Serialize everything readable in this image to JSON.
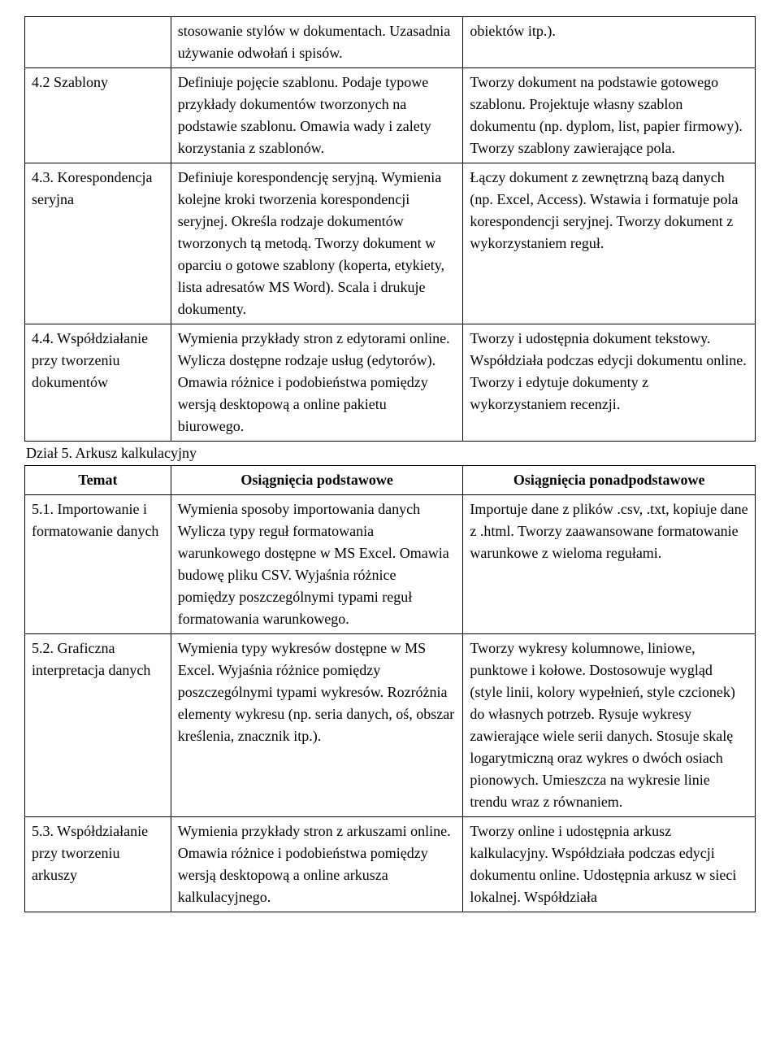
{
  "table1": {
    "rows": [
      {
        "topic": "",
        "basic": "stosowanie stylów w dokumentach. Uzasadnia używanie odwołań i spisów.",
        "extra": "obiektów itp.)."
      },
      {
        "topic": "4.2 Szablony",
        "basic": "Definiuje pojęcie szablonu. Podaje typowe przykłady dokumentów tworzonych na podstawie szablonu. Omawia wady i zalety korzystania z szablonów.",
        "extra": "Tworzy dokument na podstawie gotowego szablonu. Projektuje własny szablon dokumentu (np. dyplom, list, papier firmowy). Tworzy szablony zawierające pola."
      },
      {
        "topic": "4.3. Korespondencja seryjna",
        "basic": "Definiuje korespondencję seryjną. Wymienia kolejne kroki tworzenia korespondencji seryjnej. Określa rodzaje dokumentów tworzonych tą metodą. Tworzy dokument w oparciu o gotowe szablony (koperta, etykiety, lista adresatów MS Word). Scala i drukuje dokumenty.",
        "extra": "Łączy dokument z zewnętrzną bazą danych (np. Excel, Access). Wstawia i formatuje pola korespondencji seryjnej. Tworzy dokument z wykorzystaniem reguł."
      },
      {
        "topic": "4.4. Współdziałanie przy tworzeniu dokumentów",
        "basic": "Wymienia przykłady stron z edytorami online. Wylicza dostępne rodzaje usług (edytorów). Omawia różnice i podobieństwa pomiędzy wersją desktopową a online pakietu biurowego.",
        "extra": "Tworzy i udostępnia dokument tekstowy. Współdziała podczas edycji dokumentu online. Tworzy i edytuje dokumenty z wykorzystaniem recenzji."
      }
    ]
  },
  "section5_title": "Dział 5. Arkusz kalkulacyjny",
  "table2": {
    "headers": {
      "topic": "Temat",
      "basic": "Osiągnięcia podstawowe",
      "extra": "Osiągnięcia ponadpodstawowe"
    },
    "rows": [
      {
        "topic": "5.1. Importowanie i formatowanie danych",
        "basic": "Wymienia sposoby importowania danych Wylicza typy reguł formatowania warunkowego dostępne w MS Excel. Omawia budowę pliku CSV. Wyjaśnia różnice pomiędzy poszczególnymi typami reguł formatowania warunkowego.",
        "extra": "Importuje dane z plików .csv, .txt, kopiuje dane z .html. Tworzy zaawansowane formatowanie warunkowe z wieloma regułami."
      },
      {
        "topic": "5.2. Graficzna interpretacja danych",
        "basic": "Wymienia typy wykresów dostępne w MS Excel. Wyjaśnia różnice pomiędzy poszczególnymi typami wykresów. Rozróżnia elementy wykresu (np. seria danych, oś, obszar kreślenia, znacznik itp.).",
        "extra": "Tworzy wykresy kolumnowe, liniowe, punktowe i kołowe. Dostosowuje wygląd (style linii, kolory wypełnień, style czcionek) do własnych potrzeb. Rysuje wykresy zawierające wiele serii danych. Stosuje skalę logarytmiczną oraz wykres o dwóch osiach pionowych. Umieszcza na wykresie linie trendu wraz z równaniem."
      },
      {
        "topic": "5.3. Współdziałanie przy tworzeniu arkuszy",
        "basic": "Wymienia przykłady stron z arkuszami online. Omawia różnice i podobieństwa pomiędzy wersją desktopową a online arkusza kalkulacyjnego.",
        "extra": "Tworzy online i udostępnia arkusz kalkulacyjny. Współdziała podczas edycji dokumentu online. Udostępnia arkusz w sieci lokalnej. Współdziała"
      }
    ]
  }
}
